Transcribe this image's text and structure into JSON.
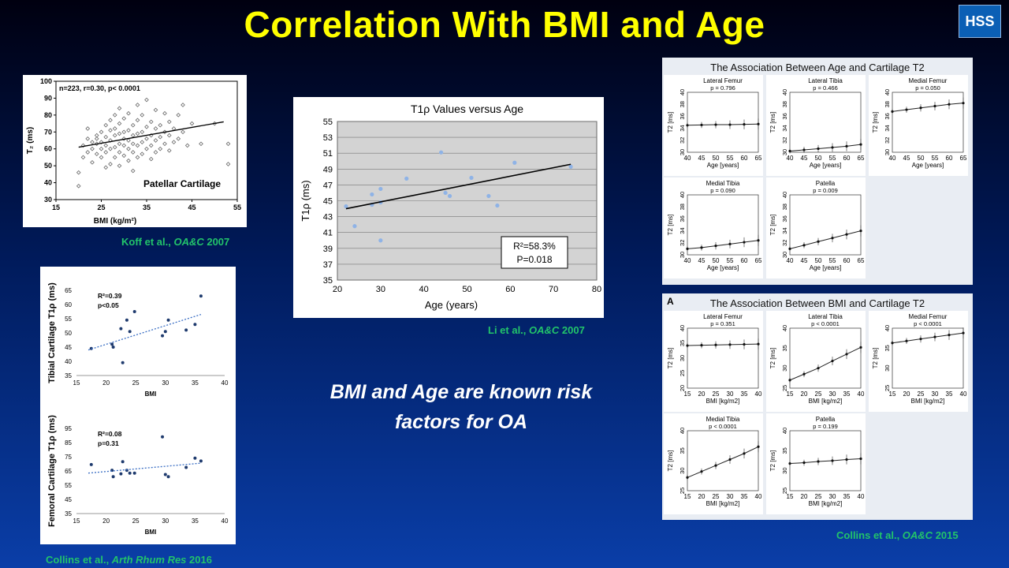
{
  "title": "Correlation With BMI and Age",
  "logo": "HSS",
  "message": "BMI and Age are known risk factors for OA",
  "citations": {
    "koff": {
      "authors": "Koff et al., ",
      "journal": "OA&C",
      "year": " 2007"
    },
    "li": {
      "authors": "Li et al., ",
      "journal": "OA&C",
      "year": " 2007"
    },
    "collins2016": {
      "authors": "Collins et al., ",
      "journal": "Arth Rhum Res",
      "year": " 2016"
    },
    "collins2015": {
      "authors": "Collins et al., ",
      "journal": "OA&C",
      "year": " 2015"
    }
  },
  "chart_data": [
    {
      "id": "koff",
      "type": "scatter",
      "title": "n=223, r=0.30, p< 0.0001",
      "annotation": "Patellar Cartilage",
      "xlabel": "BMI (kg/m²)",
      "ylabel": "T₂ (ms)",
      "xlim": [
        15,
        55
      ],
      "ylim": [
        30,
        100
      ],
      "xticks": [
        15,
        25,
        35,
        45,
        55
      ],
      "yticks": [
        30,
        40,
        50,
        60,
        70,
        80,
        90,
        100
      ],
      "trend": [
        [
          20,
          61
        ],
        [
          52,
          76
        ]
      ],
      "points": [
        [
          20,
          38
        ],
        [
          20,
          46
        ],
        [
          21,
          55
        ],
        [
          21,
          62
        ],
        [
          22,
          66
        ],
        [
          22,
          72
        ],
        [
          22,
          58
        ],
        [
          23,
          60
        ],
        [
          23,
          64
        ],
        [
          23,
          52
        ],
        [
          24,
          57
        ],
        [
          24,
          63
        ],
        [
          24,
          68
        ],
        [
          24,
          66
        ],
        [
          25,
          60
        ],
        [
          25,
          70
        ],
        [
          25,
          55
        ],
        [
          25,
          64
        ],
        [
          26,
          49
        ],
        [
          26,
          58
        ],
        [
          26,
          62
        ],
        [
          26,
          67
        ],
        [
          26,
          74
        ],
        [
          27,
          51
        ],
        [
          27,
          60
        ],
        [
          27,
          65
        ],
        [
          27,
          71
        ],
        [
          27,
          77
        ],
        [
          28,
          55
        ],
        [
          28,
          61
        ],
        [
          28,
          68
        ],
        [
          28,
          72
        ],
        [
          28,
          80
        ],
        [
          29,
          50
        ],
        [
          29,
          58
        ],
        [
          29,
          63
        ],
        [
          29,
          69
        ],
        [
          29,
          75
        ],
        [
          29,
          84
        ],
        [
          30,
          56
        ],
        [
          30,
          62
        ],
        [
          30,
          66
        ],
        [
          30,
          70
        ],
        [
          30,
          78
        ],
        [
          31,
          53
        ],
        [
          31,
          60
        ],
        [
          31,
          65
        ],
        [
          31,
          71
        ],
        [
          31,
          81
        ],
        [
          32,
          47
        ],
        [
          32,
          58
        ],
        [
          32,
          63
        ],
        [
          32,
          68
        ],
        [
          32,
          74
        ],
        [
          33,
          55
        ],
        [
          33,
          62
        ],
        [
          33,
          69
        ],
        [
          33,
          77
        ],
        [
          33,
          86
        ],
        [
          34,
          57
        ],
        [
          34,
          64
        ],
        [
          34,
          70
        ],
        [
          34,
          80
        ],
        [
          35,
          60
        ],
        [
          35,
          66
        ],
        [
          35,
          73
        ],
        [
          35,
          89
        ],
        [
          36,
          54
        ],
        [
          36,
          62
        ],
        [
          36,
          68
        ],
        [
          36,
          76
        ],
        [
          37,
          58
        ],
        [
          37,
          65
        ],
        [
          37,
          72
        ],
        [
          37,
          83
        ],
        [
          38,
          60
        ],
        [
          38,
          67
        ],
        [
          38,
          74
        ],
        [
          39,
          63
        ],
        [
          39,
          70
        ],
        [
          39,
          81
        ],
        [
          40,
          59
        ],
        [
          40,
          68
        ],
        [
          40,
          76
        ],
        [
          41,
          64
        ],
        [
          41,
          72
        ],
        [
          42,
          66
        ],
        [
          42,
          80
        ],
        [
          43,
          70
        ],
        [
          43,
          86
        ],
        [
          44,
          62
        ],
        [
          45,
          75
        ],
        [
          47,
          63
        ],
        [
          50,
          75
        ],
        [
          53,
          63
        ],
        [
          53,
          51
        ]
      ]
    },
    {
      "id": "li",
      "type": "scatter",
      "title": "T1ρ Values versus Age",
      "xlabel": "Age (years)",
      "ylabel": "T1ρ (ms)",
      "xlim": [
        20,
        80
      ],
      "ylim": [
        35,
        55
      ],
      "xticks": [
        20,
        30,
        40,
        50,
        60,
        70,
        80
      ],
      "yticks": [
        35,
        37,
        39,
        41,
        43,
        45,
        47,
        49,
        51,
        53,
        55
      ],
      "legend": {
        "r2": "R²=58.3%",
        "p": "P=0.018"
      },
      "trend": [
        [
          22,
          44
        ],
        [
          74,
          49.6
        ]
      ],
      "points": [
        [
          22,
          44.3
        ],
        [
          24,
          41.8
        ],
        [
          28,
          45.8
        ],
        [
          28,
          44.5
        ],
        [
          30,
          46.5
        ],
        [
          30,
          44.8
        ],
        [
          30,
          40
        ],
        [
          36,
          47.8
        ],
        [
          44,
          51.1
        ],
        [
          45,
          46
        ],
        [
          46,
          45.6
        ],
        [
          51,
          47.9
        ],
        [
          55,
          45.6
        ],
        [
          57,
          44.4
        ],
        [
          61,
          49.8
        ],
        [
          74,
          49.3
        ]
      ]
    },
    {
      "id": "collins_tibial",
      "type": "scatter",
      "ylabel": "Tibial Cartilage T1ρ (ms)",
      "xlabel": "BMI",
      "stat1": "R²=0.39",
      "stat2": "p<0.05",
      "xlim": [
        15,
        40
      ],
      "ylim": [
        35,
        65
      ],
      "xticks": [
        15,
        20,
        25,
        30,
        35,
        40
      ],
      "yticks": [
        35,
        40,
        45,
        50,
        55,
        60,
        65
      ],
      "trend": [
        [
          17,
          44
        ],
        [
          36,
          56.5
        ]
      ],
      "points": [
        [
          17.5,
          44.5
        ],
        [
          21,
          46
        ],
        [
          21.2,
          45
        ],
        [
          22.5,
          51.5
        ],
        [
          22.8,
          39.5
        ],
        [
          23.5,
          54.5
        ],
        [
          24,
          50.5
        ],
        [
          24.8,
          57.5
        ],
        [
          29.5,
          49
        ],
        [
          30,
          50.5
        ],
        [
          30.5,
          54.5
        ],
        [
          33.5,
          51
        ],
        [
          35,
          53
        ],
        [
          36,
          63
        ]
      ]
    },
    {
      "id": "collins_femoral",
      "type": "scatter",
      "ylabel": "Femoral Cartilage T1ρ (ms)",
      "xlabel": "BMI",
      "stat1": "R²=0.08",
      "stat2": "p=0.31",
      "xlim": [
        15,
        40
      ],
      "ylim": [
        35,
        95
      ],
      "xticks": [
        15,
        20,
        25,
        30,
        35,
        40
      ],
      "yticks": [
        35,
        45,
        55,
        65,
        75,
        85,
        95
      ],
      "trend": [
        [
          17,
          63.5
        ],
        [
          36,
          70.5
        ]
      ],
      "points": [
        [
          17.5,
          69.5
        ],
        [
          21,
          65.5
        ],
        [
          21.2,
          61
        ],
        [
          22.5,
          63
        ],
        [
          22.8,
          71.5
        ],
        [
          23.5,
          65.5
        ],
        [
          24,
          63.5
        ],
        [
          24.8,
          63.5
        ],
        [
          29.5,
          89
        ],
        [
          30,
          62.5
        ],
        [
          30.5,
          61
        ],
        [
          33.5,
          67.5
        ],
        [
          35,
          74
        ],
        [
          36,
          72
        ]
      ]
    },
    {
      "id": "collins_age",
      "type": "line",
      "title": "The Association Between Age and Cartilage T2",
      "xlabel": "Age [years]",
      "ylabel": "T2 [ms]",
      "xticks": [
        40,
        45,
        50,
        55,
        60,
        65
      ],
      "yticks": [
        30,
        32,
        34,
        36,
        38,
        40
      ],
      "xlim": [
        40,
        65
      ],
      "ylim": [
        30,
        40
      ],
      "panels": [
        {
          "name": "Lateral Femur",
          "p": "p = 0.796",
          "values": [
            34.5,
            34.55,
            34.6,
            34.6,
            34.65,
            34.7
          ]
        },
        {
          "name": "Lateral Tibia",
          "p": "p = 0.466",
          "values": [
            30.2,
            30.4,
            30.6,
            30.8,
            31.0,
            31.3
          ]
        },
        {
          "name": "Medial Femur",
          "p": "p = 0.050",
          "values": [
            36.8,
            37.1,
            37.4,
            37.7,
            38.0,
            38.2
          ]
        },
        {
          "name": "Medial Tibia",
          "p": "p = 0.090",
          "values": [
            31.0,
            31.2,
            31.5,
            31.8,
            32.1,
            32.4
          ]
        },
        {
          "name": "Patella",
          "p": "p = 0.009",
          "values": [
            31.0,
            31.6,
            32.2,
            32.8,
            33.4,
            34.0
          ]
        }
      ]
    },
    {
      "id": "collins_bmi",
      "type": "line",
      "panel_label": "A",
      "title": "The Association Between BMI and Cartilage T2",
      "xlabel": "BMI [kg/m2]",
      "ylabel": "T2 [ms]",
      "xticks": [
        15,
        20,
        25,
        30,
        35,
        40
      ],
      "xlim": [
        15,
        40
      ],
      "panels": [
        {
          "name": "Lateral Femur",
          "p": "p = 0.351",
          "ylim": [
            20,
            40
          ],
          "yticks": [
            20,
            25,
            30,
            35,
            40
          ],
          "values": [
            34.2,
            34.3,
            34.4,
            34.5,
            34.6,
            34.7
          ]
        },
        {
          "name": "Lateral Tibia",
          "p": "p < 0.0001",
          "ylim": [
            25,
            40
          ],
          "yticks": [
            25,
            30,
            35,
            40
          ],
          "values": [
            27.0,
            28.5,
            30.0,
            31.8,
            33.5,
            35.2
          ]
        },
        {
          "name": "Medial Femur",
          "p": "p < 0.0001",
          "ylim": [
            25,
            40
          ],
          "yticks": [
            25,
            30,
            35,
            40
          ],
          "values": [
            36.3,
            36.8,
            37.3,
            37.8,
            38.3,
            38.8
          ]
        },
        {
          "name": "Medial Tibia",
          "p": "p < 0.0001",
          "ylim": [
            25,
            40
          ],
          "yticks": [
            25,
            30,
            35,
            40
          ],
          "values": [
            28.3,
            29.8,
            31.3,
            32.8,
            34.3,
            36.0
          ]
        },
        {
          "name": "Patella",
          "p": "p = 0.199",
          "ylim": [
            25,
            40
          ],
          "yticks": [
            25,
            30,
            35,
            40
          ],
          "values": [
            31.8,
            32.0,
            32.3,
            32.5,
            32.8,
            33.0
          ]
        }
      ]
    }
  ]
}
